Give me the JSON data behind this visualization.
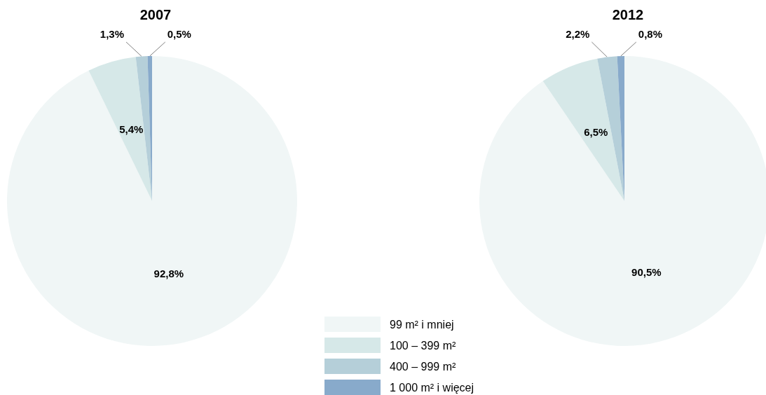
{
  "chart_data": [
    {
      "type": "pie",
      "title": "2007",
      "categories": [
        "99 m² i mniej",
        "100 – 399 m²",
        "400 – 999 m²",
        "1 000 m² i więcej"
      ],
      "values": [
        92.8,
        5.4,
        1.3,
        0.5
      ],
      "colors": [
        "#f0f6f6",
        "#d6e8e8",
        "#b5cfd9",
        "#88aacb"
      ],
      "value_labels": [
        "92,8%",
        "5,4%",
        "1,3%",
        "0,5%"
      ],
      "legend": "bottom"
    },
    {
      "type": "pie",
      "title": "2012",
      "categories": [
        null,
        null,
        null,
        null
      ],
      "values": [
        90.5,
        6.5,
        2.2,
        0.8
      ],
      "colors": [
        "#f0f6f6",
        "#d6e8e8",
        "#b5cfd9",
        "#88aacb"
      ],
      "value_labels": [
        "90,5%",
        "6,5%",
        "2,2%",
        "0,8%"
      ]
    }
  ]
}
